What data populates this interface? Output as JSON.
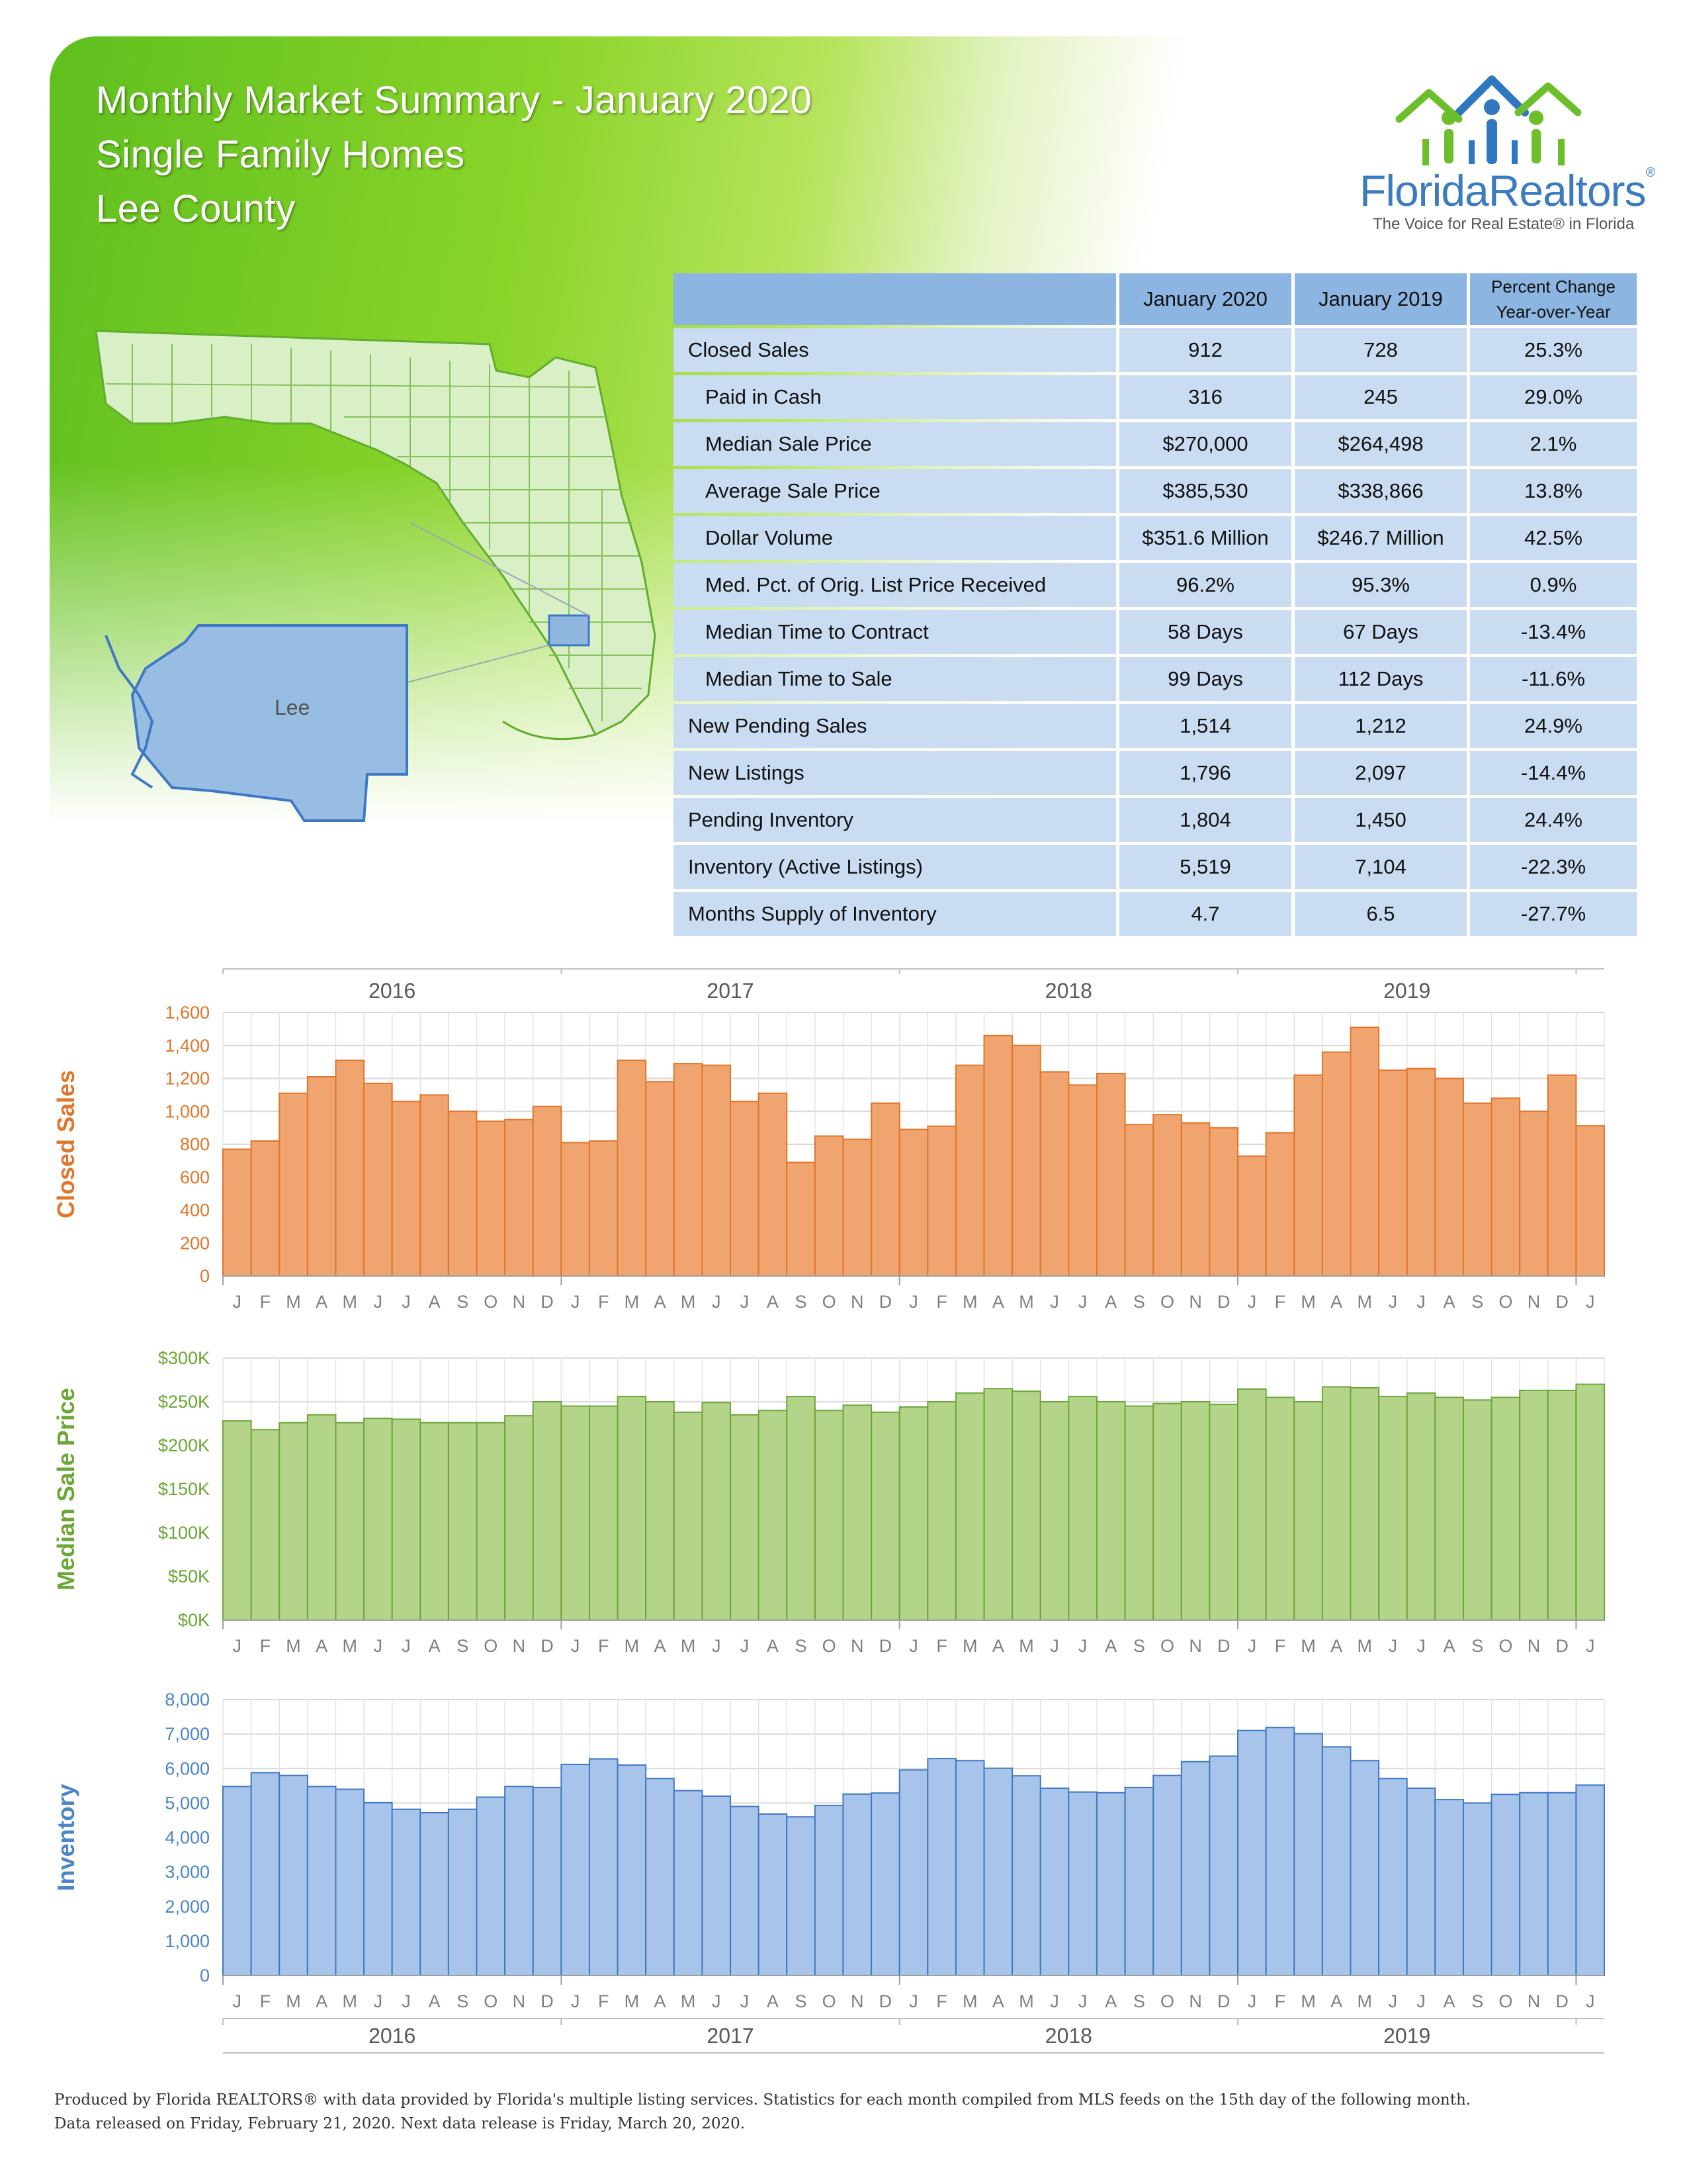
{
  "header": {
    "title_line1": "Monthly Market Summary - January 2020",
    "title_line2": "Single Family Homes",
    "title_line3": "Lee County"
  },
  "logo": {
    "name": "FloridaRealtors",
    "reg": "®",
    "tagline": "The Voice for Real Estate® in Florida"
  },
  "map": {
    "county_label": "Lee"
  },
  "table": {
    "col_current": "January 2020",
    "col_prior": "January 2019",
    "col_change_l1": "Percent Change",
    "col_change_l2": "Year-over-Year",
    "rows": [
      {
        "label": "Closed Sales",
        "current": "912",
        "prior": "728",
        "change": "25.3%",
        "indent": false
      },
      {
        "label": "Paid in Cash",
        "current": "316",
        "prior": "245",
        "change": "29.0%",
        "indent": true
      },
      {
        "label": "Median Sale Price",
        "current": "$270,000",
        "prior": "$264,498",
        "change": "2.1%",
        "indent": true
      },
      {
        "label": "Average Sale Price",
        "current": "$385,530",
        "prior": "$338,866",
        "change": "13.8%",
        "indent": true
      },
      {
        "label": "Dollar Volume",
        "current": "$351.6 Million",
        "prior": "$246.7 Million",
        "change": "42.5%",
        "indent": true
      },
      {
        "label": "Med. Pct. of Orig. List Price Received",
        "current": "96.2%",
        "prior": "95.3%",
        "change": "0.9%",
        "indent": true
      },
      {
        "label": "Median Time to Contract",
        "current": "58 Days",
        "prior": "67 Days",
        "change": "-13.4%",
        "indent": true
      },
      {
        "label": "Median Time to Sale",
        "current": "99 Days",
        "prior": "112 Days",
        "change": "-11.6%",
        "indent": true
      },
      {
        "label": "New Pending Sales",
        "current": "1,514",
        "prior": "1,212",
        "change": "24.9%",
        "indent": false
      },
      {
        "label": "New Listings",
        "current": "1,796",
        "prior": "2,097",
        "change": "-14.4%",
        "indent": false
      },
      {
        "label": "Pending Inventory",
        "current": "1,804",
        "prior": "1,450",
        "change": "24.4%",
        "indent": false
      },
      {
        "label": "Inventory (Active Listings)",
        "current": "5,519",
        "prior": "7,104",
        "change": "-22.3%",
        "indent": false
      },
      {
        "label": "Months Supply of Inventory",
        "current": "4.7",
        "prior": "6.5",
        "change": "-27.7%",
        "indent": false
      }
    ]
  },
  "chart_data": [
    {
      "type": "bar",
      "ylabel": "Closed Sales",
      "color": "#f0a46f",
      "stroke": "#e0762a",
      "label_color": "#e0762a",
      "ylim": [
        0,
        1600
      ],
      "yticks": [
        "0",
        "200",
        "400",
        "600",
        "800",
        "1,000",
        "1,200",
        "1,400",
        "1,600"
      ],
      "years": [
        "2016",
        "2017",
        "2018",
        "2019"
      ],
      "categories": [
        "J",
        "F",
        "M",
        "A",
        "M",
        "J",
        "J",
        "A",
        "S",
        "O",
        "N",
        "D",
        "J",
        "F",
        "M",
        "A",
        "M",
        "J",
        "J",
        "A",
        "S",
        "O",
        "N",
        "D",
        "J",
        "F",
        "M",
        "A",
        "M",
        "J",
        "J",
        "A",
        "S",
        "O",
        "N",
        "D",
        "J",
        "F",
        "M",
        "A",
        "M",
        "J",
        "J",
        "A",
        "S",
        "O",
        "N",
        "D",
        "J"
      ],
      "values": [
        770,
        820,
        1110,
        1210,
        1310,
        1170,
        1060,
        1100,
        1000,
        940,
        950,
        1030,
        810,
        820,
        1310,
        1180,
        1290,
        1280,
        1060,
        1110,
        690,
        850,
        830,
        1050,
        890,
        910,
        1280,
        1460,
        1400,
        1240,
        1160,
        1230,
        920,
        980,
        930,
        900,
        728,
        870,
        1220,
        1360,
        1510,
        1250,
        1260,
        1200,
        1050,
        1080,
        1000,
        1220,
        912
      ]
    },
    {
      "type": "bar",
      "ylabel": "Median Sale Price",
      "color": "#b3d489",
      "stroke": "#6ea63a",
      "label_color": "#6aa836",
      "ylim": [
        0,
        300000
      ],
      "yticks": [
        "$0K",
        "$50K",
        "$100K",
        "$150K",
        "$200K",
        "$250K",
        "$300K"
      ],
      "years": [
        "2016",
        "2017",
        "2018",
        "2019"
      ],
      "categories": [
        "J",
        "F",
        "M",
        "A",
        "M",
        "J",
        "J",
        "A",
        "S",
        "O",
        "N",
        "D",
        "J",
        "F",
        "M",
        "A",
        "M",
        "J",
        "J",
        "A",
        "S",
        "O",
        "N",
        "D",
        "J",
        "F",
        "M",
        "A",
        "M",
        "J",
        "J",
        "A",
        "S",
        "O",
        "N",
        "D",
        "J",
        "F",
        "M",
        "A",
        "M",
        "J",
        "J",
        "A",
        "S",
        "O",
        "N",
        "D",
        "J"
      ],
      "values": [
        228000,
        218000,
        226000,
        235000,
        226000,
        231000,
        230000,
        226000,
        226000,
        226000,
        234000,
        250000,
        245000,
        245000,
        256000,
        250000,
        238000,
        249000,
        235000,
        240000,
        256000,
        240000,
        246000,
        238000,
        244000,
        250000,
        260000,
        265000,
        262000,
        250000,
        256000,
        250000,
        245000,
        248000,
        250000,
        247000,
        264498,
        255000,
        250000,
        267000,
        266000,
        256000,
        260000,
        255000,
        252000,
        255000,
        263000,
        263000,
        270000
      ]
    },
    {
      "type": "bar",
      "ylabel": "Inventory",
      "color": "#a9c4ea",
      "stroke": "#3f78c4",
      "label_color": "#4a86c8",
      "ylim": [
        0,
        8000
      ],
      "yticks": [
        "0",
        "1,000",
        "2,000",
        "3,000",
        "4,000",
        "5,000",
        "6,000",
        "7,000",
        "8,000"
      ],
      "years": [
        "2016",
        "2017",
        "2018",
        "2019"
      ],
      "categories": [
        "J",
        "F",
        "M",
        "A",
        "M",
        "J",
        "J",
        "A",
        "S",
        "O",
        "N",
        "D",
        "J",
        "F",
        "M",
        "A",
        "M",
        "J",
        "J",
        "A",
        "S",
        "O",
        "N",
        "D",
        "J",
        "F",
        "M",
        "A",
        "M",
        "J",
        "J",
        "A",
        "S",
        "O",
        "N",
        "D",
        "J",
        "F",
        "M",
        "A",
        "M",
        "J",
        "J",
        "A",
        "S",
        "O",
        "N",
        "D",
        "J"
      ],
      "values": [
        5480,
        5880,
        5800,
        5480,
        5400,
        5010,
        4820,
        4720,
        4820,
        5170,
        5480,
        5450,
        6120,
        6280,
        6100,
        5710,
        5360,
        5200,
        4900,
        4680,
        4600,
        4930,
        5260,
        5290,
        5960,
        6290,
        6230,
        6010,
        5790,
        5430,
        5320,
        5300,
        5450,
        5800,
        6200,
        6360,
        7104,
        7190,
        7010,
        6630,
        6230,
        5710,
        5430,
        5100,
        5000,
        5250,
        5300,
        5300,
        5519
      ]
    }
  ],
  "footer": {
    "line1": "Produced by Florida REALTORS® with data provided by Florida's multiple listing services. Statistics for each month compiled from MLS feeds on the 15th day of the following month.",
    "line2": "Data released on Friday, February 21, 2020. Next data release is Friday, March 20, 2020."
  }
}
